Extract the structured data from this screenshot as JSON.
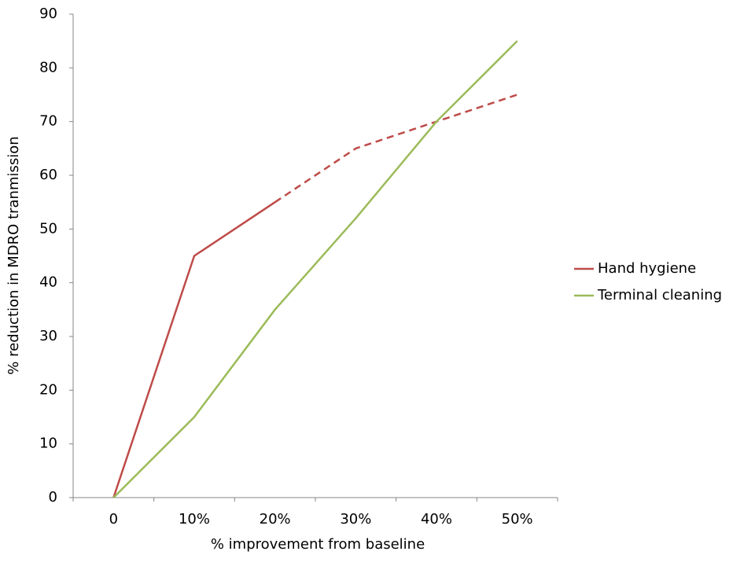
{
  "chart_data": {
    "type": "line",
    "x_label": "% improvement from baseline",
    "y_label": "% reduction in MDRO tranmission",
    "categories": [
      "0",
      "10%",
      "20%",
      "30%",
      "40%",
      "50%"
    ],
    "series": [
      {
        "name": "Hand hygiene",
        "color": "#be4b48",
        "values": [
          0,
          45,
          55,
          65,
          70,
          75
        ],
        "dashed_from": 2
      },
      {
        "name": "Terminal cleaning",
        "color": "#9bbb59",
        "values": [
          0,
          15,
          35,
          52,
          70,
          85
        ]
      }
    ],
    "ylim": [
      0,
      90
    ],
    "yticks": [
      0,
      10,
      20,
      30,
      40,
      50,
      60,
      70,
      80,
      90
    ],
    "grid": false,
    "legend": "right"
  }
}
